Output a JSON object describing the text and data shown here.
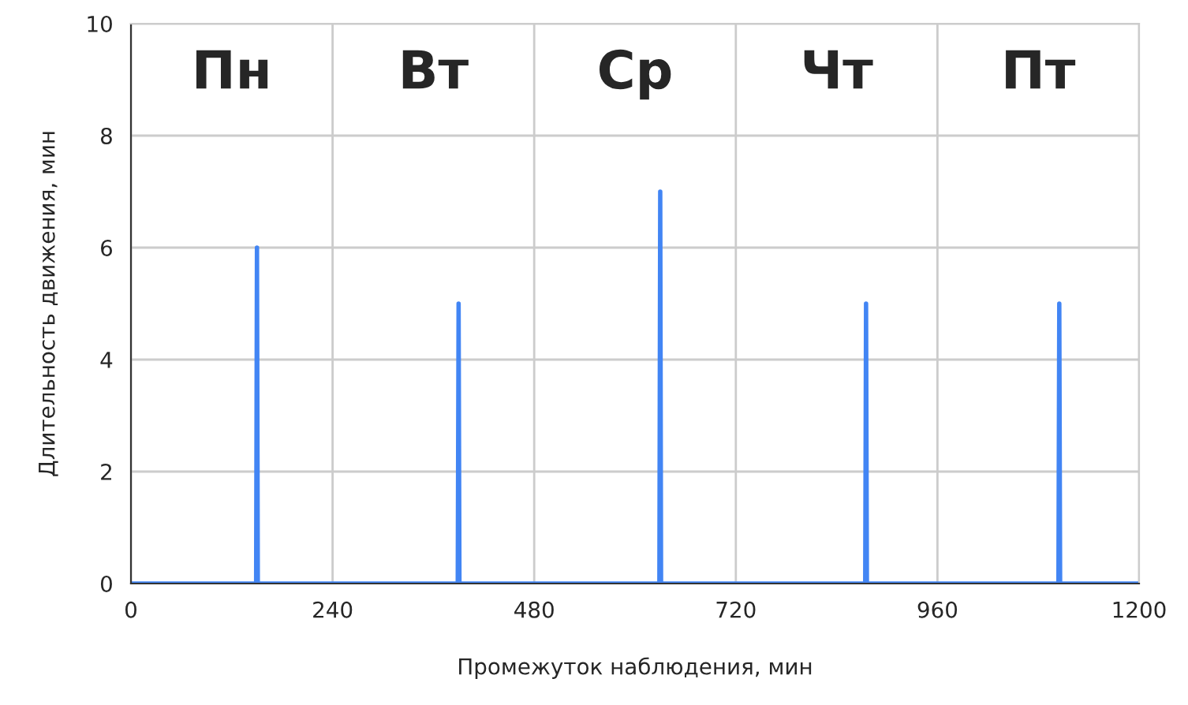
{
  "chart_data": {
    "type": "line",
    "xlabel": "Промежуток наблюдения, мин",
    "ylabel": "Длительность движения, мин",
    "x": [
      0,
      149,
      150,
      151,
      389,
      390,
      391,
      629,
      630,
      631,
      874,
      875,
      876,
      1104,
      1105,
      1106,
      1200
    ],
    "series": [
      {
        "color": "#4285f4",
        "values": [
          0,
          0,
          6,
          0,
          0,
          5,
          0,
          0,
          7,
          0,
          0,
          5,
          0,
          0,
          5,
          0,
          0
        ]
      }
    ],
    "xlim": [
      0,
      1200
    ],
    "xticks": [
      0,
      240,
      480,
      720,
      960,
      1200
    ],
    "ylim": [
      0,
      10
    ],
    "yticks": [
      0,
      2,
      4,
      6,
      8,
      10
    ],
    "grid": true,
    "marker": "none",
    "line_style": "solid",
    "annotations": [
      "Пн",
      "Вт",
      "Ср",
      "Чт",
      "Пт"
    ]
  }
}
